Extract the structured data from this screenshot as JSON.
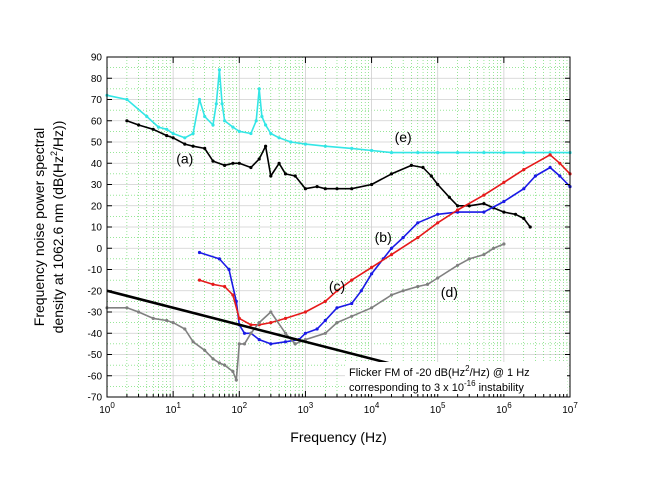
{
  "chart_data": {
    "type": "line",
    "xscale": "log",
    "xlabel": "Frequency (Hz)",
    "ylabel_line1": "Frequency noise power spectral",
    "ylabel_line2_prefix": "density at 1062.6 nm (dB(Hz",
    "ylabel_line2_sup": "2",
    "ylabel_line2_suffix": "/Hz))",
    "xlim": [
      1,
      10000000
    ],
    "ylim": [
      -70,
      90
    ],
    "xticks": [
      {
        "value": 1,
        "base": "10",
        "exp": "0"
      },
      {
        "value": 10,
        "base": "10",
        "exp": "1"
      },
      {
        "value": 100,
        "base": "10",
        "exp": "2"
      },
      {
        "value": 1000,
        "base": "10",
        "exp": "3"
      },
      {
        "value": 10000,
        "base": "10",
        "exp": "4"
      },
      {
        "value": 100000,
        "base": "10",
        "exp": "5"
      },
      {
        "value": 1000000,
        "base": "10",
        "exp": "6"
      },
      {
        "value": 10000000,
        "base": "10",
        "exp": "7"
      }
    ],
    "yticks": [
      90,
      80,
      70,
      60,
      50,
      40,
      30,
      20,
      10,
      0,
      -10,
      -20,
      -30,
      -40,
      -50,
      -60,
      -70
    ],
    "grid": true,
    "grid_color": "#33cc33",
    "series": [
      {
        "name": "(e)",
        "color": "#33e6e6",
        "x": [
          1,
          2,
          4,
          6,
          8,
          10,
          15,
          20,
          25,
          30,
          40,
          45,
          50,
          55,
          60,
          80,
          100,
          150,
          180,
          200,
          220,
          250,
          300,
          400,
          600,
          1000,
          2000,
          5000,
          10000,
          20000,
          50000,
          100000,
          200000,
          500000,
          1000000,
          2000000,
          5000000,
          10000000
        ],
        "y": [
          72,
          70,
          62,
          57,
          56,
          54,
          52,
          54,
          70,
          62,
          58,
          68,
          84,
          68,
          60,
          57,
          55,
          54,
          60,
          75,
          62,
          58,
          54,
          52,
          50,
          49,
          48,
          47,
          46,
          45,
          45,
          45,
          45,
          45,
          45,
          45,
          45,
          45
        ]
      },
      {
        "name": "(a)",
        "color": "#000000",
        "x": [
          2,
          3,
          5,
          8,
          10,
          15,
          20,
          30,
          40,
          60,
          80,
          100,
          150,
          200,
          250,
          300,
          400,
          500,
          700,
          1000,
          1500,
          2000,
          3000,
          5000,
          10000,
          20000,
          40000,
          60000,
          80000,
          100000,
          150000,
          200000,
          300000,
          500000,
          700000,
          1000000,
          1500000,
          2000000,
          2500000
        ],
        "y": [
          60,
          58,
          56,
          53,
          52,
          49,
          48,
          47,
          41,
          39,
          40,
          40,
          38,
          42,
          48,
          34,
          40,
          35,
          34,
          28,
          29,
          28,
          28,
          28,
          30,
          35,
          39,
          38,
          34,
          30,
          24,
          20,
          20,
          21,
          19,
          17,
          16,
          14,
          10
        ]
      },
      {
        "name": "(b)",
        "color": "#1a1ae6",
        "x": [
          25,
          50,
          70,
          90,
          100,
          120,
          150,
          200,
          300,
          500,
          800,
          1000,
          1500,
          2000,
          3000,
          5000,
          7000,
          10000,
          15000,
          20000,
          30000,
          50000,
          100000,
          200000,
          500000,
          1000000,
          2000000,
          3000000,
          5000000,
          7000000,
          10000000
        ],
        "y": [
          -2,
          -5,
          -10,
          -25,
          -36,
          -40,
          -40,
          -43,
          -45,
          -44,
          -43,
          -40,
          -38,
          -34,
          -28,
          -26,
          -20,
          -12,
          -5,
          0,
          5,
          12,
          16,
          17,
          17,
          22,
          28,
          34,
          38,
          34,
          29
        ]
      },
      {
        "name": "(c)",
        "color": "#e61a1a",
        "x": [
          25,
          40,
          60,
          80,
          100,
          150,
          200,
          300,
          500,
          1000,
          2000,
          3000,
          5000,
          10000,
          20000,
          50000,
          100000,
          200000,
          500000,
          1000000,
          2000000,
          5000000,
          7000000,
          10000000
        ],
        "y": [
          -15,
          -17,
          -18,
          -22,
          -33,
          -36,
          -36,
          -35,
          -33,
          -30,
          -25,
          -20,
          -15,
          -9,
          -3,
          5,
          12,
          18,
          25,
          31,
          37,
          44,
          40,
          35
        ]
      },
      {
        "name": "(d)",
        "color": "#808080",
        "x": [
          1,
          2,
          3,
          5,
          8,
          10,
          15,
          20,
          30,
          40,
          50,
          60,
          80,
          90,
          100,
          120,
          150,
          200,
          300,
          500,
          700,
          1000,
          2000,
          3000,
          5000,
          10000,
          20000,
          30000,
          50000,
          70000,
          100000,
          200000,
          300000,
          500000,
          700000,
          1000000
        ],
        "y": [
          -28,
          -28,
          -30,
          -33,
          -34,
          -35,
          -38,
          -44,
          -48,
          -52,
          -54,
          -55,
          -58,
          -62,
          -45,
          -45,
          -40,
          -35,
          -30,
          -40,
          -45,
          -43,
          -40,
          -35,
          -32,
          -28,
          -22,
          -20,
          -18,
          -17,
          -14,
          -8,
          -5,
          -3,
          0,
          2
        ]
      }
    ],
    "reference_line": {
      "x": [
        1,
        100000
      ],
      "y": [
        -20,
        -60
      ],
      "color": "#000000"
    },
    "annotations": [
      {
        "label": "(e)",
        "x": 30000,
        "y": 50
      },
      {
        "label": "(a)",
        "x": 15,
        "y": 40
      },
      {
        "label": "(b)",
        "x": 15000,
        "y": 3
      },
      {
        "label": "(c)",
        "x": 3000,
        "y": -20
      },
      {
        "label": "(d)",
        "x": 150000,
        "y": -23
      }
    ],
    "note_line1": "Flicker FM of -20 dB(Hz",
    "note_line1_sup": "2",
    "note_line1_suffix": "/Hz) @ 1 Hz",
    "note_line2_prefix": "corresponding to 3 x 10",
    "note_line2_sup": "-16",
    "note_line2_suffix": " instability"
  }
}
